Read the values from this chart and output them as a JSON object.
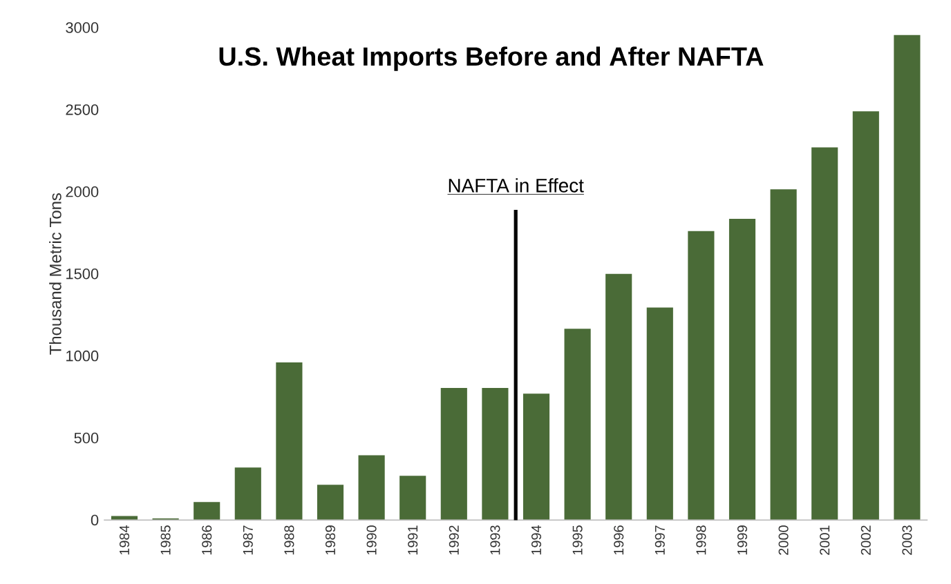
{
  "chart_data": {
    "type": "bar",
    "title": "U.S. Wheat Imports Before and After NAFTA",
    "ylabel": "Thousand Metric Tons",
    "categories": [
      "1984",
      "1985",
      "1986",
      "1987",
      "1988",
      "1989",
      "1990",
      "1991",
      "1992",
      "1993",
      "1994",
      "1995",
      "1996",
      "1997",
      "1998",
      "1999",
      "2000",
      "2001",
      "2002",
      "2003"
    ],
    "values": [
      25,
      10,
      110,
      320,
      960,
      215,
      395,
      270,
      805,
      805,
      770,
      1165,
      1500,
      1295,
      1760,
      1835,
      2015,
      2270,
      2490,
      2955
    ],
    "color": "#4a6b37",
    "ylim": [
      0,
      3000
    ],
    "yticks": [
      0,
      500,
      1000,
      1500,
      2000,
      2500,
      3000
    ],
    "ref_lines": [
      {
        "axis": "x",
        "value": "1994",
        "label": "NAFTA in Effect",
        "color": "#000000"
      }
    ],
    "grid": false
  }
}
